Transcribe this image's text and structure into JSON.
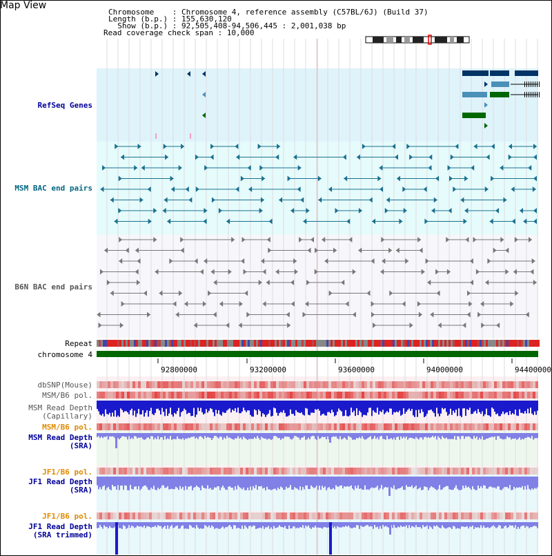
{
  "header": {
    "title": "Map View",
    "chromosome_line": "Chromosome    : Chromosome 4, reference assembly (C57BL/6J) (Build 37)",
    "length_line": "Length (b.p.) : 155,630,120",
    "show_line": "  Show (b.p.) : 92,505,408-94,506,445 : 2,001,038 bp",
    "coverage_line": "Read coverage check span : 10,000"
  },
  "tracks": {
    "refseq": "RefSeq Genes",
    "msm_bac": "MSM BAC end pairs",
    "b6n_bac": "B6N BAC end pairs",
    "repeat": "Repeat",
    "chromosome": "chromosome 4",
    "dbsnp": "dbSNP(Mouse)",
    "msm_b6_pol_1": "MSM/B6 pol.",
    "msm_read_depth_cap_1": "MSM Read Depth",
    "msm_read_depth_cap_2": "(Capillary)",
    "msm_b6_pol_2": "MSM/B6 pol.",
    "msm_read_depth_sra_1": "MSM Read Depth",
    "msm_read_depth_sra_2": "(SRA)",
    "jf1_b6_pol_1": "JF1/B6 pol.",
    "jf1_read_depth_sra_1": "JF1 Read Depth",
    "jf1_read_depth_sra_2": "(SRA)",
    "jf1_b6_pol_2": "JF1/B6 pol.",
    "jf1_read_depth_trim_1": "JF1 Read Depth",
    "jf1_read_depth_trim_2": "(SRA trimmed)"
  },
  "axis": {
    "ticks": [
      "92800000",
      "93200000",
      "93600000",
      "94000000",
      "94400000"
    ]
  },
  "colors": {
    "refseq_bg": "#dff3fb",
    "msm_bg": "#e6fbfb",
    "b6n_bg": "#f7f7fb",
    "chromosome_bar": "#006600",
    "gene_dark": "#003366",
    "gene_mid": "#4a90b8",
    "gene_green": "#006600",
    "msm_pair": "#1a7090",
    "b6n_pair": "#777777",
    "depth_blue": "#1a1acc",
    "depth_light": "#8080e6",
    "pol_red": "#e04848"
  }
}
